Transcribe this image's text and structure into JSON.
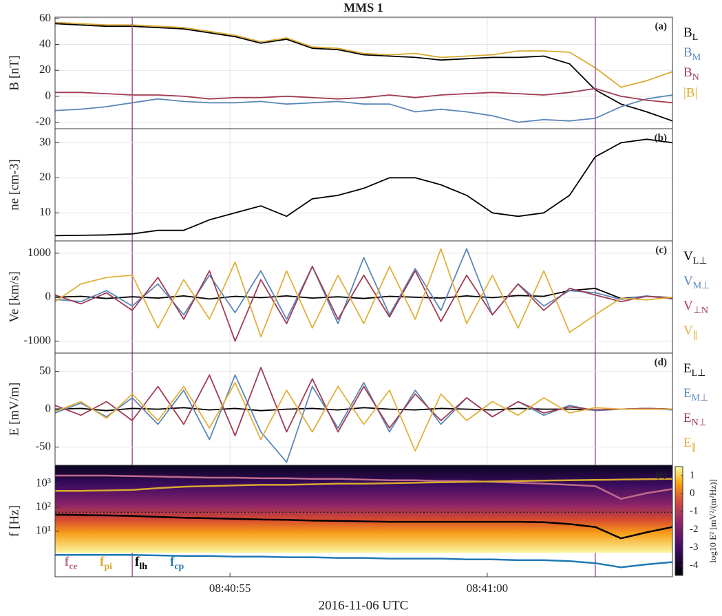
{
  "chart_data": [
    {
      "type": "line",
      "title": "MMS 1",
      "panel_label": "(a)",
      "ylabel": "B [nT]",
      "ylim": [
        -25,
        61
      ],
      "yticks": [
        -20,
        0,
        20,
        40,
        60
      ],
      "grid": true,
      "legend": "right",
      "xlim": [
        "08:40:51.6",
        "08:41:03.6"
      ],
      "x": [
        "08:40:51.6",
        "08:40:52.1",
        "08:40:52.6",
        "08:40:53.1",
        "08:40:53.6",
        "08:40:54.1",
        "08:40:54.6",
        "08:40:55.1",
        "08:40:55.6",
        "08:40:56.1",
        "08:40:56.6",
        "08:40:57.1",
        "08:40:57.6",
        "08:40:58.1",
        "08:40:58.6",
        "08:40:59.1",
        "08:40:59.6",
        "08:41:00.1",
        "08:41:00.6",
        "08:41:01.1",
        "08:41:01.6",
        "08:41:02.1",
        "08:41:02.6",
        "08:41:03.1",
        "08:41:03.6"
      ],
      "vlines": {
        "color": "#a0559a",
        "x": [
          "08:40:53.1",
          "08:41:02.1"
        ]
      },
      "series": [
        {
          "name": "BL",
          "color": "#000000",
          "values": [
            56,
            55,
            54,
            54,
            53,
            52,
            49,
            46,
            41,
            44,
            37,
            36,
            32,
            31,
            30,
            28,
            29,
            30,
            30,
            31,
            25,
            5,
            -6,
            -12,
            -19
          ]
        },
        {
          "name": "BM",
          "color": "#5b87b8",
          "values": [
            -11,
            -10,
            -8,
            -5,
            -2,
            -4,
            -5,
            -5,
            -4,
            -6,
            -5,
            -4,
            -6,
            -6,
            -12,
            -10,
            -12,
            -15,
            -20,
            -18,
            -19,
            -17,
            -8,
            -2,
            1
          ]
        },
        {
          "name": "BN",
          "color": "#a13b52",
          "values": [
            3,
            3,
            2,
            1,
            1,
            0,
            -2,
            -1,
            -1,
            0,
            -1,
            -2,
            -1,
            1,
            -1,
            1,
            2,
            3,
            2,
            1,
            3,
            6,
            0,
            -3,
            -5
          ]
        },
        {
          "name": "|B|",
          "color": "#d9a930",
          "values": [
            57,
            56,
            55,
            55,
            54,
            53,
            50,
            47,
            42,
            45,
            38,
            37,
            33,
            32,
            33,
            30,
            31,
            32,
            35,
            35,
            34,
            22,
            7,
            12,
            19
          ]
        }
      ]
    },
    {
      "type": "line",
      "panel_label": "(b)",
      "ylabel": "ne [cm-3]",
      "ylim": [
        2,
        34
      ],
      "yticks": [
        10,
        20,
        30
      ],
      "grid": true,
      "legend": "none",
      "xlim": [
        "08:40:51.6",
        "08:41:03.6"
      ],
      "x": [
        "08:40:51.6",
        "08:40:52.1",
        "08:40:52.6",
        "08:40:53.1",
        "08:40:53.6",
        "08:40:54.1",
        "08:40:54.6",
        "08:40:55.1",
        "08:40:55.6",
        "08:40:56.1",
        "08:40:56.6",
        "08:40:57.1",
        "08:40:57.6",
        "08:40:58.1",
        "08:40:58.6",
        "08:40:59.1",
        "08:40:59.6",
        "08:41:00.1",
        "08:41:00.6",
        "08:41:01.1",
        "08:41:01.6",
        "08:41:02.1",
        "08:41:02.6",
        "08:41:03.1",
        "08:41:03.6"
      ],
      "series": [
        {
          "color": "#000000",
          "values": [
            3.5,
            3.6,
            3.7,
            4,
            5,
            5,
            8,
            10,
            12,
            9,
            14,
            15,
            17,
            20,
            20,
            18,
            15,
            10,
            9,
            10,
            15,
            26,
            30,
            31,
            30
          ]
        }
      ]
    },
    {
      "type": "line",
      "panel_label": "(c)",
      "ylabel": "Ve [km/s]",
      "ylim": [
        -1270,
        1280
      ],
      "yticks": [
        -1000,
        0,
        1000
      ],
      "grid": true,
      "legend": "right",
      "xlim": [
        "08:40:51.6",
        "08:41:03.6"
      ],
      "x": [
        "08:40:51.6",
        "08:40:52.1",
        "08:40:52.6",
        "08:40:53.1",
        "08:40:53.6",
        "08:40:54.1",
        "08:40:54.6",
        "08:40:55.1",
        "08:40:55.6",
        "08:40:56.1",
        "08:40:56.6",
        "08:40:57.1",
        "08:40:57.6",
        "08:40:58.1",
        "08:40:58.6",
        "08:40:59.1",
        "08:40:59.6",
        "08:41:00.1",
        "08:41:00.6",
        "08:41:01.1",
        "08:41:01.6",
        "08:41:02.1",
        "08:41:02.6",
        "08:41:03.1",
        "08:41:03.6"
      ],
      "series": [
        {
          "name": "VL⊥",
          "color": "#000000",
          "values": [
            0,
            20,
            -30,
            10,
            -20,
            30,
            -40,
            20,
            -10,
            30,
            -20,
            10,
            -30,
            20,
            0,
            -20,
            30,
            -10,
            40,
            20,
            150,
            200,
            -30,
            20,
            -10
          ]
        },
        {
          "name": "VM⊥",
          "color": "#5b87b8",
          "values": [
            -50,
            -100,
            150,
            -200,
            300,
            -400,
            500,
            -350,
            600,
            -500,
            700,
            -600,
            900,
            -400,
            650,
            -300,
            1100,
            -400,
            300,
            -200,
            150,
            100,
            -50,
            30,
            -40
          ]
        },
        {
          "name": "V⊥N",
          "color": "#a13b52",
          "values": [
            50,
            -150,
            100,
            -300,
            450,
            -500,
            600,
            -1000,
            400,
            -600,
            700,
            -500,
            500,
            -450,
            600,
            -550,
            500,
            -400,
            300,
            -300,
            200,
            50,
            -100,
            20,
            -30
          ]
        },
        {
          "name": "V∥",
          "color": "#e0b03a",
          "values": [
            -100,
            300,
            450,
            500,
            -700,
            400,
            -500,
            800,
            -900,
            600,
            -700,
            500,
            -600,
            700,
            -500,
            1100,
            -600,
            500,
            -700,
            600,
            -800,
            -400,
            -20,
            -60,
            0
          ]
        }
      ]
    },
    {
      "type": "line",
      "panel_label": "(d)",
      "ylabel": "E [mV/m]",
      "ylim": [
        -74,
        74
      ],
      "yticks": [
        -50,
        0,
        50
      ],
      "grid": true,
      "legend": "right",
      "xlim": [
        "08:40:51.6",
        "08:41:03.6"
      ],
      "x": [
        "08:40:51.6",
        "08:40:52.1",
        "08:40:52.6",
        "08:40:53.1",
        "08:40:53.6",
        "08:40:54.1",
        "08:40:54.6",
        "08:40:55.1",
        "08:40:55.6",
        "08:40:56.1",
        "08:40:56.6",
        "08:40:57.1",
        "08:40:57.6",
        "08:40:58.1",
        "08:40:58.6",
        "08:40:59.1",
        "08:40:59.6",
        "08:41:00.1",
        "08:41:00.6",
        "08:41:01.1",
        "08:41:01.6",
        "08:41:02.1",
        "08:41:02.6",
        "08:41:03.1",
        "08:41:03.6"
      ],
      "series": [
        {
          "name": "EL⊥",
          "color": "#000000",
          "values": [
            0,
            1,
            -2,
            1,
            0,
            2,
            -1,
            1,
            -2,
            0,
            1,
            -1,
            2,
            0,
            -1,
            1,
            0,
            -1,
            1,
            0,
            0,
            -1,
            0,
            1,
            0
          ]
        },
        {
          "name": "EM⊥",
          "color": "#5b87b8",
          "values": [
            -5,
            8,
            -10,
            15,
            -20,
            25,
            -40,
            45,
            -30,
            -70,
            30,
            -25,
            35,
            -30,
            25,
            -20,
            15,
            -10,
            10,
            -8,
            5,
            -2,
            0,
            1,
            -1
          ]
        },
        {
          "name": "EN⊥",
          "color": "#a13b52",
          "values": [
            5,
            -8,
            10,
            -15,
            30,
            -20,
            45,
            -35,
            55,
            -30,
            40,
            -30,
            30,
            -25,
            20,
            -15,
            15,
            -10,
            10,
            -5,
            3,
            -1,
            0,
            1,
            0
          ]
        },
        {
          "name": "E∥",
          "color": "#e0b03a",
          "values": [
            -3,
            10,
            -12,
            20,
            -15,
            30,
            -25,
            35,
            -40,
            25,
            -30,
            30,
            -20,
            25,
            -55,
            20,
            -15,
            10,
            -8,
            15,
            -5,
            2,
            0,
            0,
            0
          ]
        }
      ]
    },
    {
      "type": "line",
      "panel_label": "(e)",
      "ylabel": "f [Hz]",
      "log_y": true,
      "ylim": [
        0.12,
        6000
      ],
      "yticks": [
        {
          "value": 10,
          "label": "10¹"
        },
        {
          "value": 100,
          "label": "10²"
        },
        {
          "value": 1000,
          "label": "10³"
        }
      ],
      "grid": false,
      "legend": "inside-bottom-left",
      "xlabel": "2016-11-06 UTC",
      "xlim": [
        "08:40:51.6",
        "08:41:03.6"
      ],
      "xticks": [
        "08:40:55",
        "08:41:00"
      ],
      "hlines": [
        63
      ],
      "colorbar": {
        "label": "log10 E² [mV²/(m²Hz)]",
        "clim": [
          -4.55,
          1.5
        ],
        "ticks": [
          -4,
          -3,
          -2,
          -1,
          0,
          1
        ]
      },
      "x": [
        "08:40:51.6",
        "08:40:52.1",
        "08:40:52.6",
        "08:40:53.1",
        "08:40:53.6",
        "08:40:54.1",
        "08:40:54.6",
        "08:40:55.1",
        "08:40:55.6",
        "08:40:56.1",
        "08:40:56.6",
        "08:40:57.1",
        "08:40:57.6",
        "08:40:58.1",
        "08:40:58.6",
        "08:40:59.1",
        "08:40:59.6",
        "08:41:00.1",
        "08:41:00.6",
        "08:41:01.1",
        "08:41:01.6",
        "08:41:02.1",
        "08:41:02.6",
        "08:41:03.1",
        "08:41:03.6"
      ],
      "series": [
        {
          "name": "fce",
          "color": "#c06b8a",
          "values": [
            2200,
            2200,
            2200,
            2100,
            2000,
            1900,
            1800,
            1800,
            1700,
            1700,
            1600,
            1600,
            1500,
            1400,
            1400,
            1300,
            1300,
            1200,
            1100,
            1000,
            900,
            800,
            230,
            400,
            600
          ]
        },
        {
          "name": "fpi",
          "color": "#d9a930",
          "values": [
            500,
            500,
            520,
            550,
            650,
            750,
            800,
            850,
            900,
            900,
            950,
            1000,
            1000,
            1050,
            1100,
            1150,
            1200,
            1250,
            1300,
            1350,
            1400,
            1450,
            1500,
            1550,
            1600
          ]
        },
        {
          "name": "flh",
          "color": "#000000",
          "values": [
            50,
            48,
            46,
            44,
            40,
            37,
            35,
            33,
            31,
            30,
            28,
            27,
            26,
            25,
            25,
            25,
            25,
            25,
            25,
            24,
            20,
            15,
            5,
            9,
            15
          ]
        },
        {
          "name": "fcp",
          "color": "#1f78b4",
          "values": [
            1.0,
            1.0,
            1.0,
            1.0,
            0.95,
            0.9,
            0.9,
            0.85,
            0.85,
            0.8,
            0.8,
            0.75,
            0.75,
            0.7,
            0.7,
            0.7,
            0.65,
            0.65,
            0.6,
            0.6,
            0.55,
            0.45,
            0.3,
            0.4,
            0.5
          ]
        }
      ]
    }
  ]
}
